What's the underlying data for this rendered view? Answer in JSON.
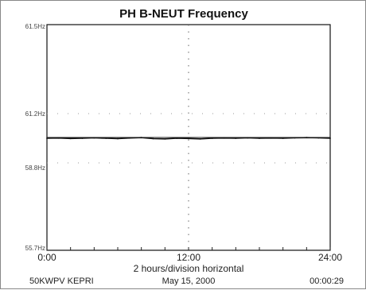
{
  "chart_data": {
    "type": "line",
    "title": "PH B-NEUT Frequency",
    "y_tick_labels": [
      "61.5Hz",
      "61.2Hz",
      "58.8Hz",
      "55.7Hz"
    ],
    "y_ticks": [
      61.5,
      61.2,
      58.8,
      55.7
    ],
    "ylim": [
      55.7,
      61.5
    ],
    "x_tick_labels": [
      "0:00",
      "12:00",
      "24:00"
    ],
    "x_ticks": [
      0,
      12,
      24
    ],
    "xlim": [
      0,
      24
    ],
    "xlabel": "2 hours/division horizontal",
    "grid": "dotted",
    "series": [
      {
        "x": [
          0,
          1,
          2,
          3,
          4,
          5,
          6,
          7,
          8,
          9,
          10,
          11,
          12,
          13,
          14,
          15,
          16,
          17,
          18,
          19,
          20,
          21,
          22,
          23,
          24
        ],
        "values": [
          60.0,
          60.01,
          59.99,
          60.0,
          60.02,
          60.0,
          59.98,
          60.01,
          60.03,
          59.98,
          59.97,
          60.0,
          59.99,
          59.97,
          60.0,
          60.01,
          60.0,
          60.02,
          60.0,
          60.01,
          60.0,
          60.02,
          60.03,
          60.02,
          60.0
        ]
      }
    ],
    "annotations": {
      "station": "50KWPV KEPRI",
      "date": "May 15, 2000",
      "time": "00:00:29"
    }
  }
}
